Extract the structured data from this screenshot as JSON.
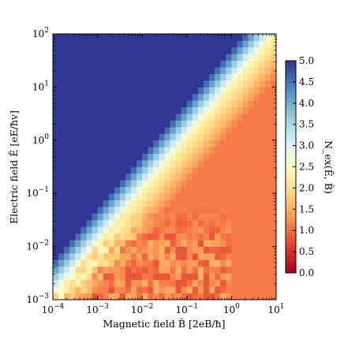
{
  "chart_data": {
    "type": "heatmap",
    "title": "",
    "xlabel": "Magnetic field B̃ [2eB/ħ]",
    "ylabel": "Electric field Ẽ [eE/ħv]",
    "colorbar_label": "N_ex(Ẽ, B̃)",
    "x_scale": "log",
    "y_scale": "log",
    "xlim": [
      0.0001,
      10
    ],
    "ylim": [
      0.001,
      100
    ],
    "x_ticks": [
      {
        "value": 0.0001,
        "base": "10",
        "exp": "−4"
      },
      {
        "value": 0.001,
        "base": "10",
        "exp": "−3"
      },
      {
        "value": 0.01,
        "base": "10",
        "exp": "−2"
      },
      {
        "value": 0.1,
        "base": "10",
        "exp": "−1"
      },
      {
        "value": 1,
        "base": "10",
        "exp": "0"
      },
      {
        "value": 10,
        "base": "10",
        "exp": "1"
      }
    ],
    "y_ticks": [
      {
        "value": 0.001,
        "base": "10",
        "exp": "−3"
      },
      {
        "value": 0.01,
        "base": "10",
        "exp": "−2"
      },
      {
        "value": 0.1,
        "base": "10",
        "exp": "−1"
      },
      {
        "value": 1,
        "base": "10",
        "exp": "0"
      },
      {
        "value": 10,
        "base": "10",
        "exp": "1"
      },
      {
        "value": 100,
        "base": "10",
        "exp": "2"
      }
    ],
    "colorbar": {
      "range": [
        0.0,
        5.0
      ],
      "ticks": [
        "0.0",
        "0.5",
        "1.0",
        "1.5",
        "2.0",
        "2.5",
        "3.0",
        "3.5",
        "4.0",
        "4.5",
        "5.0"
      ],
      "colormap": "RdYlBu",
      "colors": [
        "#a50026",
        "#d73027",
        "#f46d43",
        "#fdae61",
        "#fee090",
        "#ffffbf",
        "#e0f3f8",
        "#abd9e9",
        "#74add1",
        "#4575b4",
        "#313695"
      ]
    },
    "grid": {
      "nx": 40,
      "ny": 40,
      "description_of_regions": {
        "upper_left_value": 5.0,
        "lower_right_value": 1.0,
        "boundary": "diagonal from (1e-4, 1e-3) to (10, 100), transition through yellow (~2.5)"
      }
    }
  }
}
